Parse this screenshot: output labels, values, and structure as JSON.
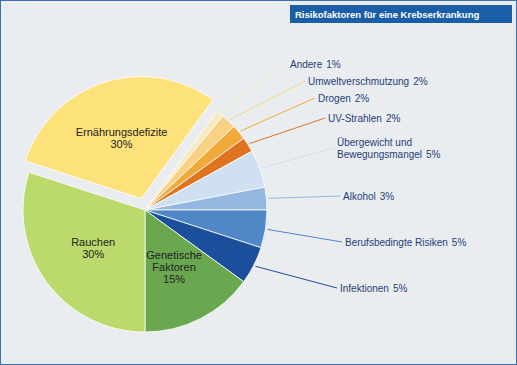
{
  "chart_data": {
    "type": "pie",
    "title": "Risikofaktoren für eine Krebserkrankung",
    "categories": [
      "Ernährungsdefizite",
      "Andere",
      "Umweltverschmutzung",
      "Drogen",
      "UV-Strahlen",
      "Übergewicht und Bewegungsmangel",
      "Alkohol",
      "Berufsbedingte Risiken",
      "Infektionen",
      "Genetische Faktoren",
      "Rauchen"
    ],
    "values": [
      30,
      1,
      2,
      2,
      2,
      5,
      3,
      5,
      5,
      15,
      30
    ],
    "value_labels": [
      "30%",
      "1%",
      "2%",
      "2%",
      "2%",
      "5%",
      "3%",
      "5%",
      "5%",
      "15%",
      "30%"
    ],
    "colors": [
      "#fde27c",
      "#f6ebc4",
      "#f8d184",
      "#f1a93a",
      "#e0731f",
      "#cfe0f2",
      "#93b7df",
      "#4f87c7",
      "#1b4f9c",
      "#6aa84f",
      "#bcd96c"
    ],
    "data_labels": true
  }
}
